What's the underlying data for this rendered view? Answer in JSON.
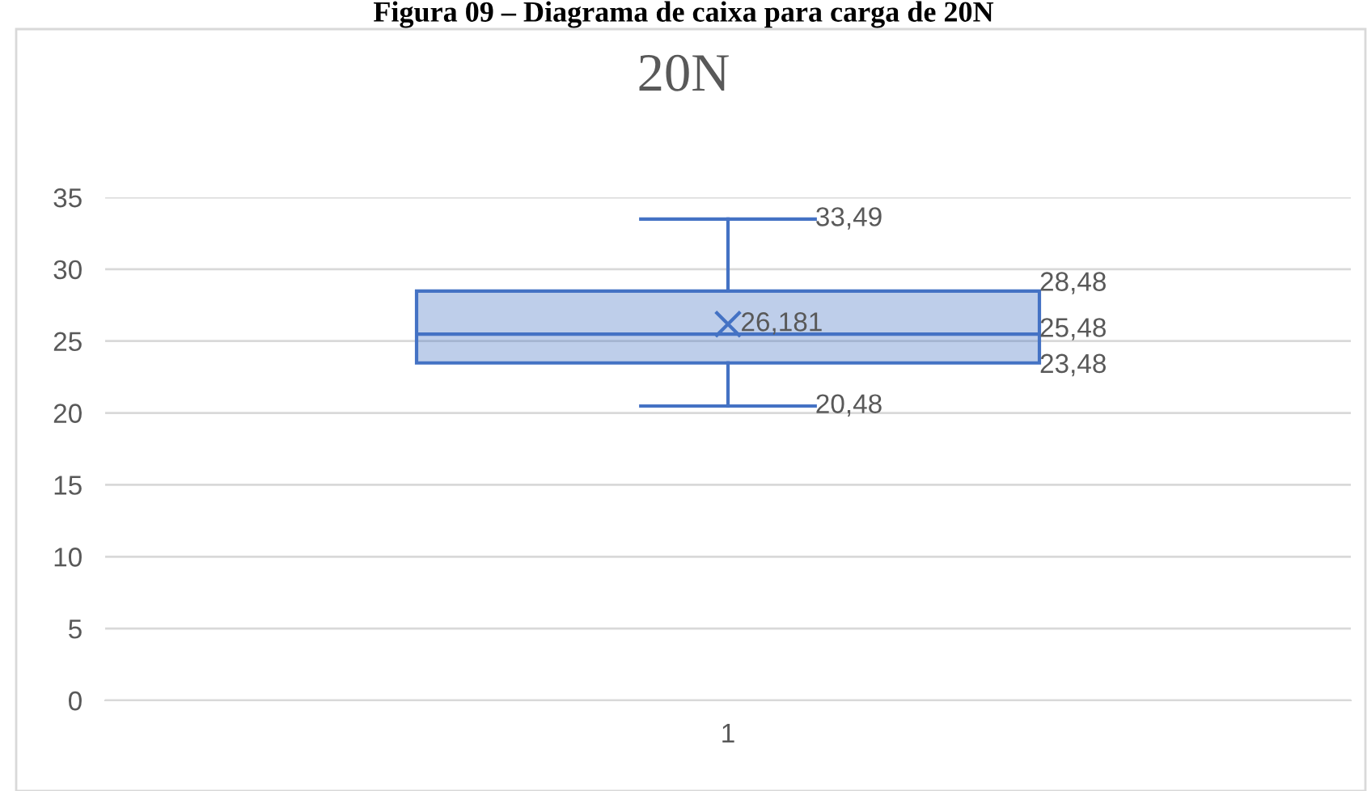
{
  "chart_data": {
    "type": "box",
    "title": "20N",
    "subtitle": "Figura 09 – Diagrama de caixa para carga de 20N",
    "categories": [
      "1"
    ],
    "series": [
      {
        "color": "#4472c4",
        "boxes": [
          {
            "low": 20.48,
            "q1": 23.48,
            "median": 25.48,
            "q3": 28.48,
            "high": 33.49,
            "mean": 26.181
          }
        ]
      }
    ],
    "annotations": [
      "33,49",
      "28,48",
      "26,181",
      "25,48",
      "23,48",
      "20,48"
    ],
    "ylim": [
      0,
      35
    ],
    "yticks": [
      0,
      5,
      10,
      15,
      20,
      25,
      30,
      35
    ],
    "grid": "y",
    "marker": "cross"
  }
}
